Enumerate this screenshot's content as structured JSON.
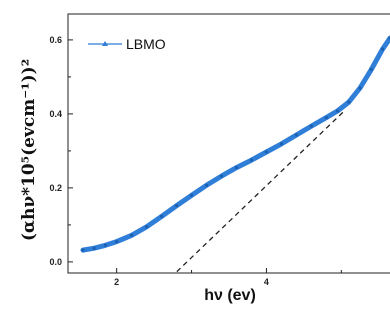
{
  "chart_data": {
    "type": "line",
    "title": "",
    "xlabel": "hν (ev)",
    "ylabel": "(αhν*10⁵(evcm⁻¹))²",
    "xlim": [
      1.35,
      5.65
    ],
    "ylim": [
      -0.03,
      0.67
    ],
    "x_ticks": [
      2,
      4
    ],
    "y_ticks": [
      0.0,
      0.2,
      0.4,
      0.6
    ],
    "x_tick_labels": [
      "2",
      "4"
    ],
    "y_tick_labels": [
      "0.0",
      "0.2",
      "0.4",
      "0.6"
    ],
    "grid": false,
    "legend": "top-left",
    "series": [
      {
        "name": "LBMO",
        "color": "#2f7ed8",
        "x": [
          1.55,
          1.7,
          1.85,
          2.0,
          2.2,
          2.4,
          2.6,
          2.8,
          3.0,
          3.2,
          3.4,
          3.6,
          3.8,
          4.0,
          4.2,
          4.4,
          4.6,
          4.8,
          4.95,
          5.1,
          5.25,
          5.4,
          5.55,
          5.65
        ],
        "y": [
          0.032,
          0.037,
          0.045,
          0.055,
          0.072,
          0.095,
          0.123,
          0.152,
          0.18,
          0.207,
          0.232,
          0.255,
          0.275,
          0.297,
          0.319,
          0.343,
          0.367,
          0.39,
          0.408,
          0.432,
          0.47,
          0.52,
          0.575,
          0.605
        ]
      }
    ],
    "annotations": [
      {
        "type": "fit-line",
        "style": "dashed",
        "color": "#222222",
        "x": [
          2.63,
          5.05
        ],
        "y": [
          -0.06,
          0.41
        ]
      }
    ]
  }
}
